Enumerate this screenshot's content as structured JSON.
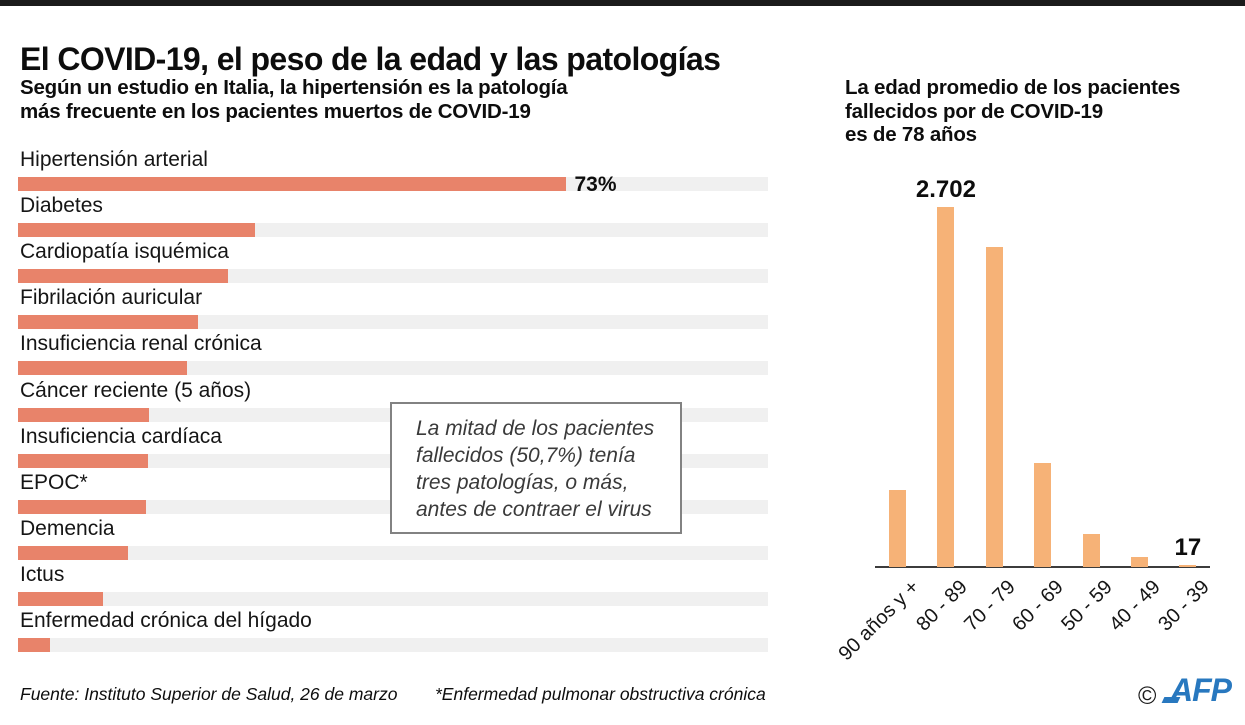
{
  "colors": {
    "top_bar": "#1b1b1b",
    "left_bar": "#e8836a",
    "right_bar": "#f6b277",
    "track": "#f0f0f0",
    "afp_blue": "#2878bf"
  },
  "header": {
    "title": "El COVID-19, el peso de la edad y las patologías",
    "subtitle_left_lines": [
      "Según un estudio en Italia, la hipertensión es la patología",
      "más frecuente en los pacientes muertos de COVID-19"
    ],
    "subtitle_right_lines": [
      "La edad promedio de los pacientes",
      "fallecidos por de COVID-19",
      "es de 78 años"
    ]
  },
  "note_box": {
    "lines": [
      "La mitad de los pacientes",
      "fallecidos (50,7%) tenía",
      "tres patologías, o más,",
      "antes de contraer el virus"
    ]
  },
  "footer": {
    "source": "Fuente: Instituto Superior de Salud, 26 de marzo",
    "footnote": "*Enfermedad pulmonar obstructiva crónica",
    "credit_symbol": "©",
    "credit": "AFP"
  },
  "chart_data": [
    {
      "type": "bar",
      "orientation": "horizontal",
      "title": "Patologías más frecuentes en los pacientes muertos de COVID-19",
      "categories": [
        "Hipertensión arterial",
        "Diabetes",
        "Cardiopatía isquémica",
        "Fibrilación auricular",
        "Insuficiencia renal crónica",
        "Cáncer reciente (5 años)",
        "Insuficiencia cardíaca",
        "EPOC*",
        "Demencia",
        "Ictus",
        "Enfermedad crónica del hígado"
      ],
      "values_pct": [
        73,
        31.6,
        28,
        24,
        22.5,
        17.5,
        17.3,
        17,
        14.7,
        11.3,
        4.3
      ],
      "value_labels": {
        "0": "73%"
      },
      "xlim": [
        0,
        100
      ],
      "grid": false,
      "legend": false
    },
    {
      "type": "bar",
      "orientation": "vertical",
      "title": "Muertes por COVID-19 por grupo de edad",
      "categories": [
        "90 años y +",
        "80 - 89",
        "70 - 79",
        "60 - 69",
        "50 - 59",
        "40 - 49",
        "30 - 39"
      ],
      "values": [
        577,
        2702,
        2402,
        777,
        245,
        75,
        17
      ],
      "value_labels": {
        "1": "2.702",
        "6": "17"
      },
      "ylim": [
        0,
        2800
      ],
      "grid": false,
      "legend": false
    }
  ]
}
